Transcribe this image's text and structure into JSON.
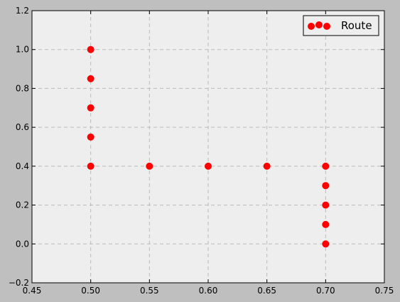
{
  "chart_data": {
    "type": "scatter",
    "title": "",
    "xlabel": "",
    "ylabel": "",
    "xlim": [
      0.45,
      0.75
    ],
    "ylim": [
      -0.2,
      1.2
    ],
    "xticks": [
      0.45,
      0.5,
      0.55,
      0.6,
      0.65,
      0.7,
      0.75
    ],
    "xtick_labels": [
      "0.45",
      "0.50",
      "0.55",
      "0.60",
      "0.65",
      "0.70",
      "0.75"
    ],
    "yticks": [
      -0.2,
      0.0,
      0.2,
      0.4,
      0.6,
      0.8,
      1.0,
      1.2
    ],
    "ytick_labels": [
      "−0.2",
      "0.0",
      "0.2",
      "0.4",
      "0.6",
      "0.8",
      "1.0",
      "1.2"
    ],
    "grid": true,
    "legend_position": "top-right",
    "series": [
      {
        "name": "Route",
        "color": "#ff0000",
        "x": [
          0.5,
          0.5,
          0.5,
          0.5,
          0.5,
          0.55,
          0.6,
          0.65,
          0.7,
          0.7,
          0.7,
          0.7,
          0.7
        ],
        "y": [
          1.0,
          0.85,
          0.7,
          0.55,
          0.4,
          0.4,
          0.4,
          0.4,
          0.4,
          0.3,
          0.2,
          0.1,
          0.0
        ]
      }
    ],
    "colors": {
      "figure_background": "#bfbfbf",
      "plot_background": "#eeeeee",
      "grid": "#bbbbbb",
      "marker": "#ff0000"
    }
  }
}
